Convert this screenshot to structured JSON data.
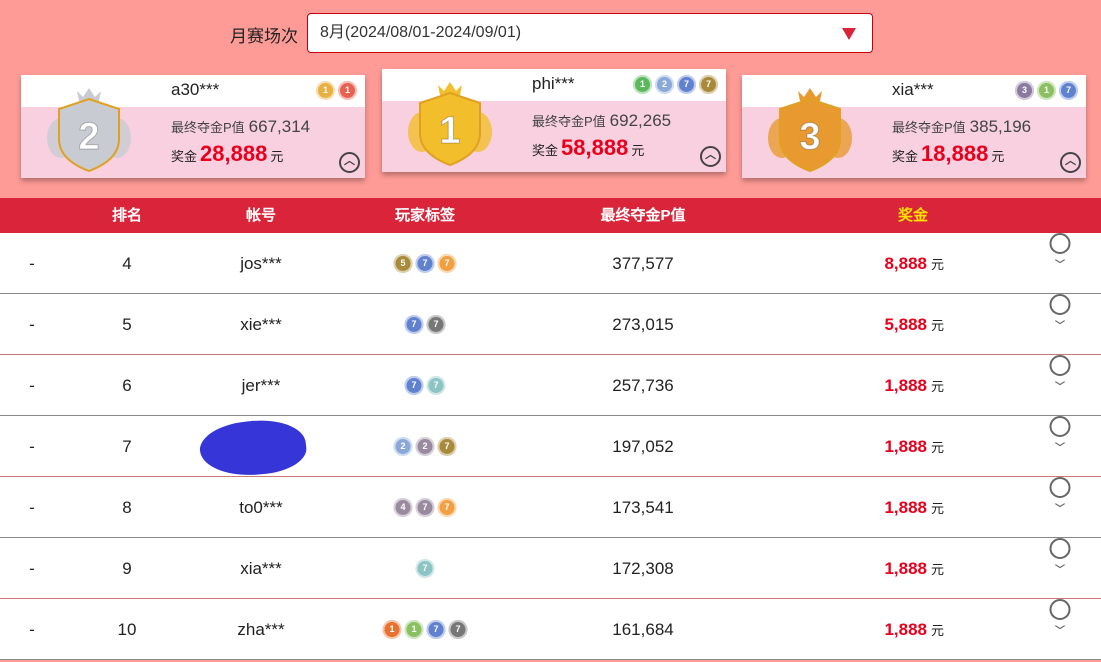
{
  "filter": {
    "label": "月赛场次",
    "value": "8月(2024/08/01-2024/09/01)"
  },
  "podium": [
    {
      "rank": "2",
      "name": "a30***",
      "pv_label": "最终夺金P值",
      "pv": "667,314",
      "prize_label": "奖金",
      "prize": "28,888",
      "unit": "元",
      "medal_color": "#c8ccd2",
      "badges": [
        {
          "t": "1",
          "c": "#e8b040"
        },
        {
          "t": "1",
          "c": "#e86050"
        }
      ]
    },
    {
      "rank": "1",
      "name": "phi***",
      "pv_label": "最终夺金P值",
      "pv": "692,265",
      "prize_label": "奖金",
      "prize": "58,888",
      "unit": "元",
      "medal_color": "#f2be2c",
      "badges": [
        {
          "t": "1",
          "c": "#5cb85c"
        },
        {
          "t": "2",
          "c": "#8aa8d8"
        },
        {
          "t": "7",
          "c": "#6080d0"
        },
        {
          "t": "7",
          "c": "#a88a3a"
        }
      ]
    },
    {
      "rank": "3",
      "name": "xia***",
      "pv_label": "最终夺金P值",
      "pv": "385,196",
      "prize_label": "奖金",
      "prize": "18,888",
      "unit": "元",
      "medal_color": "#e89a30",
      "badges": [
        {
          "t": "3",
          "c": "#8a7aa0"
        },
        {
          "t": "1",
          "c": "#8ac060"
        },
        {
          "t": "7",
          "c": "#6080d0"
        }
      ]
    }
  ],
  "table": {
    "headers": [
      "排名",
      "帐号",
      "玩家标签",
      "最终夺金P值",
      "奖金"
    ],
    "prize_header_color": "#ffe000",
    "rows": [
      {
        "change": "-",
        "rank": "4",
        "name": "jos***",
        "pv": "377,577",
        "prize": "8,888",
        "unit": "元",
        "badges": [
          {
            "t": "5",
            "c": "#a88a3a"
          },
          {
            "t": "7",
            "c": "#6080d0"
          },
          {
            "t": "7",
            "c": "#f0a040"
          }
        ]
      },
      {
        "change": "-",
        "rank": "5",
        "name": "xie***",
        "pv": "273,015",
        "prize": "5,888",
        "unit": "元",
        "badges": [
          {
            "t": "7",
            "c": "#6080d0"
          },
          {
            "t": "7",
            "c": "#777"
          }
        ]
      },
      {
        "change": "-",
        "rank": "6",
        "name": "jer***",
        "pv": "257,736",
        "prize": "1,888",
        "unit": "元",
        "badges": [
          {
            "t": "7",
            "c": "#6080d0"
          },
          {
            "t": "7",
            "c": "#8cc4c4"
          }
        ]
      },
      {
        "change": "-",
        "rank": "7",
        "name": "",
        "pv": "197,052",
        "prize": "1,888",
        "unit": "元",
        "badges": [
          {
            "t": "2",
            "c": "#8aa8d8"
          },
          {
            "t": "2",
            "c": "#9a8aa0"
          },
          {
            "t": "7",
            "c": "#a88a3a"
          }
        ]
      },
      {
        "change": "-",
        "rank": "8",
        "name": "to0***",
        "pv": "173,541",
        "prize": "1,888",
        "unit": "元",
        "badges": [
          {
            "t": "4",
            "c": "#9a8aa0"
          },
          {
            "t": "7",
            "c": "#9a8aa0"
          },
          {
            "t": "7",
            "c": "#f0a040"
          }
        ]
      },
      {
        "change": "-",
        "rank": "9",
        "name": "xia***",
        "pv": "172,308",
        "prize": "1,888",
        "unit": "元",
        "badges": [
          {
            "t": "7",
            "c": "#8cc4c4"
          }
        ]
      },
      {
        "change": "-",
        "rank": "10",
        "name": "zha***",
        "pv": "161,684",
        "prize": "1,888",
        "unit": "元",
        "badges": [
          {
            "t": "1",
            "c": "#e87030"
          },
          {
            "t": "1",
            "c": "#8ac060"
          },
          {
            "t": "7",
            "c": "#6080d0"
          },
          {
            "t": "7",
            "c": "#777"
          }
        ]
      }
    ]
  }
}
